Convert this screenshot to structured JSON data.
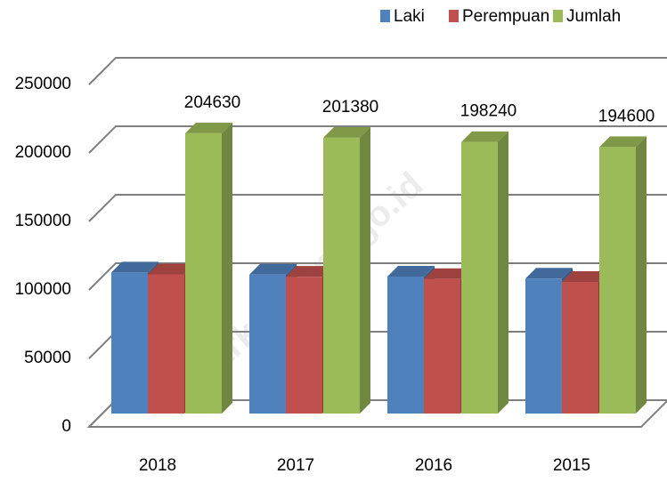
{
  "chart_data": {
    "type": "bar3d",
    "categories": [
      "2018",
      "2017",
      "2016",
      "2015"
    ],
    "series": [
      {
        "name": "Laki",
        "color": "#4f81bd",
        "values": [
          103000,
          101500,
          100000,
          98500
        ]
      },
      {
        "name": "Perempuan",
        "color": "#c0504d",
        "values": [
          101630,
          99880,
          98240,
          96100
        ]
      },
      {
        "name": "Jumlah",
        "color": "#9bbb59",
        "values": [
          204630,
          201380,
          198240,
          194600
        ],
        "show_labels": true
      }
    ],
    "ylim": [
      0,
      250000
    ],
    "yticks": [
      0,
      50000,
      100000,
      150000,
      200000,
      250000
    ],
    "grid": true,
    "legend": "top-right",
    "watermark": "pasarkota.bps.go.id"
  }
}
